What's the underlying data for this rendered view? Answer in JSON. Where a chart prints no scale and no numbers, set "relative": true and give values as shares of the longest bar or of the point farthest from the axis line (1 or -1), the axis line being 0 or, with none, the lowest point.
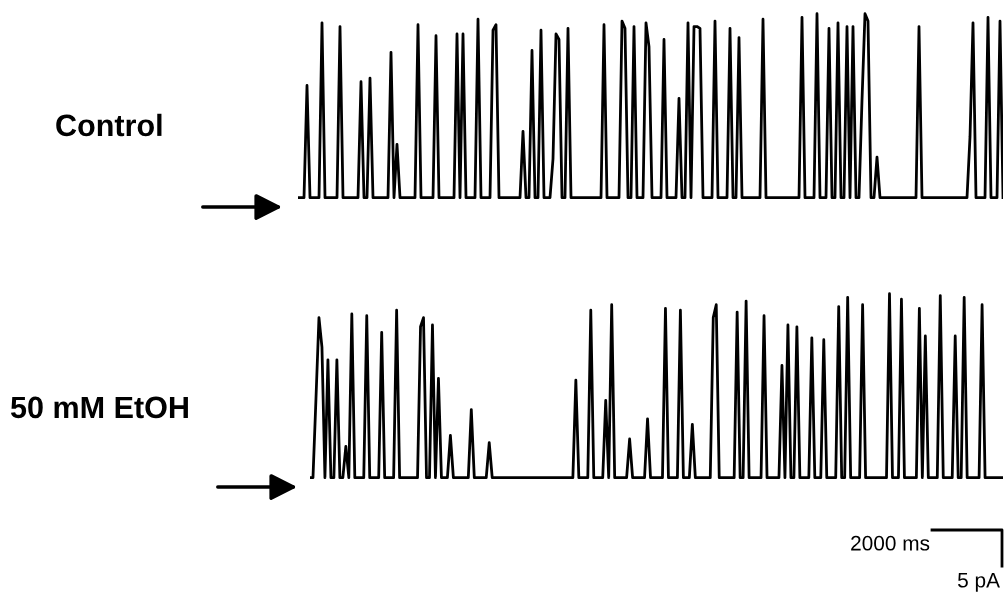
{
  "chart_data": [
    {
      "type": "line",
      "title": "Control",
      "relative": true,
      "categories": [
        null,
        null,
        null,
        null,
        null,
        null,
        null,
        null,
        null,
        null,
        null,
        null,
        null,
        null,
        null,
        null,
        null,
        null,
        null,
        null,
        null,
        null,
        null,
        null,
        null,
        null,
        null,
        null,
        null,
        null,
        null,
        null,
        null,
        null,
        null,
        null,
        null,
        null,
        null,
        null,
        null,
        null,
        null,
        null,
        null,
        null,
        null,
        null,
        null,
        null,
        null,
        null,
        null,
        null,
        null,
        null,
        null,
        null,
        null,
        null,
        null,
        null,
        null,
        null,
        null,
        null,
        null,
        null,
        null,
        null,
        null,
        null,
        null,
        null,
        null,
        null,
        null,
        null,
        null,
        null,
        null,
        null,
        null,
        null,
        null,
        null,
        null,
        null,
        null,
        null,
        null,
        null,
        null,
        null,
        null,
        null,
        null,
        null,
        null,
        null,
        null,
        null,
        null,
        null,
        null,
        null,
        null,
        null,
        null,
        null,
        null,
        null,
        null,
        null,
        null,
        null,
        null,
        null,
        null,
        null,
        null,
        null,
        null,
        null,
        null,
        null,
        null,
        null,
        null,
        null,
        null,
        null,
        null,
        null,
        null,
        null,
        null,
        null,
        null,
        null,
        null,
        null,
        null,
        null,
        null,
        null,
        null,
        null,
        null,
        null,
        null,
        null,
        null,
        null,
        null,
        null,
        null,
        null,
        null,
        null,
        null,
        null,
        null,
        null,
        null,
        null,
        null,
        null,
        null,
        null,
        null,
        null,
        null,
        null,
        null,
        null,
        null,
        null,
        null,
        null,
        null,
        null,
        null,
        null,
        null,
        null,
        null,
        null,
        null,
        null,
        null,
        null,
        null,
        null,
        null,
        null,
        null,
        null,
        null,
        null,
        null,
        null,
        null,
        null,
        null,
        null,
        null,
        null,
        null,
        null,
        null,
        null,
        null,
        null,
        null,
        null,
        null,
        null,
        null,
        null,
        null,
        null,
        null,
        null,
        null,
        null,
        null,
        null,
        null,
        null,
        null,
        null,
        null,
        null,
        null,
        null
      ],
      "series": [
        {
          "color": "#000000",
          "values": [
            0,
            0,
            0,
            0.61,
            0,
            0,
            0,
            0,
            0.95,
            0,
            0,
            0,
            0,
            0,
            0.93,
            0,
            0,
            0,
            0,
            0,
            0,
            0.63,
            0,
            0,
            0.65,
            0,
            0,
            0,
            0,
            0,
            0,
            0.79,
            0,
            0.29,
            0,
            0,
            0,
            0,
            0,
            0,
            0.94,
            0,
            0,
            0,
            0,
            0,
            0.88,
            0,
            0,
            0,
            0,
            0,
            0,
            0.89,
            0,
            0.89,
            0,
            0,
            0,
            0,
            0.97,
            0,
            0,
            0,
            0,
            0.91,
            0.94,
            0,
            0,
            0,
            0,
            0,
            0,
            0,
            0,
            0.36,
            0,
            0,
            0.8,
            0,
            0,
            0.91,
            0,
            0,
            0,
            0.21,
            0.89,
            0.86,
            0,
            0,
            0.92,
            0,
            0,
            0,
            0,
            0,
            0,
            0,
            0,
            0,
            0,
            0,
            0.94,
            0,
            0,
            0,
            0,
            0,
            0.96,
            0.92,
            0,
            0,
            0.93,
            0,
            0,
            0,
            0.95,
            0.82,
            0,
            0,
            0,
            0,
            0.86,
            0,
            0,
            0,
            0,
            0.54,
            0,
            0,
            0.95,
            0,
            0.93,
            0.93,
            0.92,
            0,
            0,
            0,
            0,
            0.96,
            0,
            0,
            0,
            0,
            0.92,
            0,
            0,
            0.87,
            0,
            0,
            0,
            0,
            0,
            0,
            0,
            0.97,
            0,
            0,
            0,
            0,
            0,
            0,
            0,
            0,
            0,
            0,
            0,
            0,
            0.98,
            0,
            0,
            0,
            0,
            1,
            0,
            0,
            0,
            0.92,
            0,
            0,
            0.95,
            0,
            0,
            0.93,
            0,
            0.93,
            0,
            0,
            0.53,
            1,
            0.96,
            0,
            0,
            0.22,
            0,
            0,
            0,
            0,
            0,
            0,
            0,
            0,
            0,
            0,
            0,
            0,
            0,
            0.93,
            0,
            0,
            0,
            0,
            0,
            0,
            0,
            0,
            0,
            0,
            0,
            0,
            0,
            0,
            0,
            0,
            0.33,
            0.95,
            0,
            0,
            0,
            0,
            0.98,
            0,
            0,
            0,
            0.96,
            0
          ]
        }
      ]
    },
    {
      "type": "line",
      "title": "50 mM EtOH",
      "relative": true,
      "annotations": [
        "2000 ms",
        "5 pA"
      ],
      "categories": [
        null,
        null,
        null,
        null,
        null,
        null,
        null,
        null,
        null,
        null,
        null,
        null,
        null,
        null,
        null,
        null,
        null,
        null,
        null,
        null,
        null,
        null,
        null,
        null,
        null,
        null,
        null,
        null,
        null,
        null,
        null,
        null,
        null,
        null,
        null,
        null,
        null,
        null,
        null,
        null,
        null,
        null,
        null,
        null,
        null,
        null,
        null,
        null,
        null,
        null,
        null,
        null,
        null,
        null,
        null,
        null,
        null,
        null,
        null,
        null,
        null,
        null,
        null,
        null,
        null,
        null,
        null,
        null,
        null,
        null,
        null,
        null,
        null,
        null,
        null,
        null,
        null,
        null,
        null,
        null,
        null,
        null,
        null,
        null,
        null,
        null,
        null,
        null,
        null,
        null,
        null,
        null,
        null,
        null,
        null,
        null,
        null,
        null,
        null,
        null,
        null,
        null,
        null,
        null,
        null,
        null,
        null,
        null,
        null,
        null,
        null,
        null,
        null,
        null,
        null,
        null,
        null,
        null,
        null,
        null,
        null,
        null,
        null,
        null,
        null,
        null,
        null,
        null,
        null,
        null,
        null,
        null,
        null,
        null,
        null,
        null,
        null,
        null,
        null,
        null,
        null,
        null,
        null,
        null,
        null,
        null,
        null,
        null,
        null,
        null,
        null,
        null,
        null,
        null,
        null,
        null,
        null,
        null,
        null,
        null,
        null,
        null,
        null,
        null,
        null,
        null,
        null,
        null,
        null,
        null,
        null,
        null,
        null,
        null,
        null,
        null,
        null,
        null,
        null,
        null,
        null,
        null,
        null,
        null,
        null,
        null,
        null,
        null,
        null,
        null,
        null,
        null,
        null,
        null,
        null,
        null,
        null,
        null,
        null,
        null,
        null,
        null,
        null,
        null,
        null,
        null,
        null,
        null,
        null,
        null,
        null,
        null,
        null,
        null,
        null,
        null,
        null,
        null,
        null,
        null,
        null,
        null,
        null,
        null,
        null,
        null,
        null,
        null,
        null,
        null,
        null,
        null,
        null
      ],
      "series": [
        {
          "color": "#000000",
          "values": [
            0,
            0,
            0.43,
            0.87,
            0.71,
            0,
            0.64,
            0,
            0,
            0.64,
            0,
            0,
            0.17,
            0,
            0.89,
            0,
            0,
            0,
            0,
            0.88,
            0,
            0,
            0,
            0,
            0.79,
            0,
            0,
            0,
            0,
            0.91,
            0,
            0,
            0,
            0,
            0,
            0,
            0,
            0.82,
            0.87,
            0,
            0,
            0.83,
            0,
            0.54,
            0,
            0,
            0,
            0.23,
            0,
            0,
            0,
            0,
            0,
            0,
            0.37,
            0,
            0,
            0,
            0,
            0,
            0.19,
            0,
            0,
            0,
            0,
            0,
            0,
            0,
            0,
            0,
            0,
            0,
            0,
            0,
            0,
            0,
            0,
            0,
            0,
            0,
            0,
            0,
            0,
            0,
            0,
            0,
            0,
            0,
            0,
            0.53,
            0,
            0,
            0,
            0,
            0.91,
            0,
            0,
            0,
            0,
            0.42,
            0,
            0.94,
            0,
            0,
            0,
            0,
            0,
            0.21,
            0,
            0,
            0,
            0,
            0,
            0.32,
            0,
            0,
            0,
            0,
            0,
            0.92,
            0,
            0,
            0,
            0,
            0.91,
            0,
            0,
            0,
            0.29,
            0,
            0,
            0,
            0,
            0,
            0,
            0.87,
            0.94,
            0,
            0,
            0,
            0,
            0,
            0,
            0.9,
            0,
            0,
            0.96,
            0,
            0,
            0,
            0,
            0,
            0.88,
            0,
            0,
            0,
            0,
            0,
            0.61,
            0,
            0.83,
            0,
            0,
            0.82,
            0,
            0,
            0,
            0,
            0.76,
            0,
            0,
            0,
            0.75,
            0,
            0,
            0,
            0,
            0.93,
            0,
            0,
            0.98,
            0,
            0,
            0,
            0,
            0.94,
            0,
            0,
            0,
            0,
            0,
            0,
            0,
            0,
            1,
            0,
            0,
            0,
            0.97,
            0,
            0,
            0,
            0,
            0,
            0.92,
            0,
            0.77,
            0,
            0,
            0,
            0,
            0.99,
            0,
            0,
            0,
            0,
            0.77,
            0,
            0,
            0.98,
            0,
            0,
            0,
            0,
            0,
            0.94,
            0,
            0,
            0,
            0,
            0,
            0,
            0
          ]
        }
      ]
    }
  ]
}
